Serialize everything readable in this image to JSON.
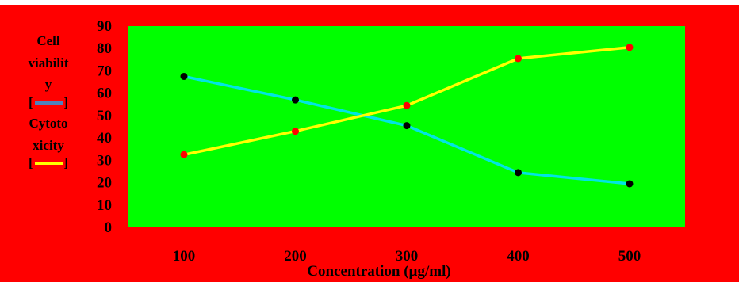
{
  "colors": {
    "background": "#ff0000",
    "plot_area": "#00ff00",
    "border_top": "#ffffff",
    "cell_viability_line": "#00e5e5",
    "cell_viability_marker": "#000000",
    "cell_viability_legend": "#4f81bd",
    "cytotoxicity_line": "#ffff00",
    "cytotoxicity_marker": "#ff0000"
  },
  "chart_data": {
    "type": "line",
    "title": "",
    "xlabel": "Concentration (µg/ml)",
    "ylabel_lines": [
      "Cell",
      "viabilit",
      "y",
      "[",
      "]",
      "Cytoto",
      "xicity",
      "[",
      "]"
    ],
    "x": [
      100,
      200,
      300,
      400,
      500
    ],
    "ylim": [
      0,
      90
    ],
    "yticks": [
      0,
      10,
      20,
      30,
      40,
      50,
      60,
      70,
      80,
      90
    ],
    "grid": false,
    "series": [
      {
        "name": "Cell viability",
        "values": [
          67.5,
          57,
          45.5,
          24.5,
          19.5
        ]
      },
      {
        "name": "Cytotoxicity",
        "values": [
          32.5,
          43,
          54.5,
          75.5,
          80.5
        ]
      }
    ]
  }
}
